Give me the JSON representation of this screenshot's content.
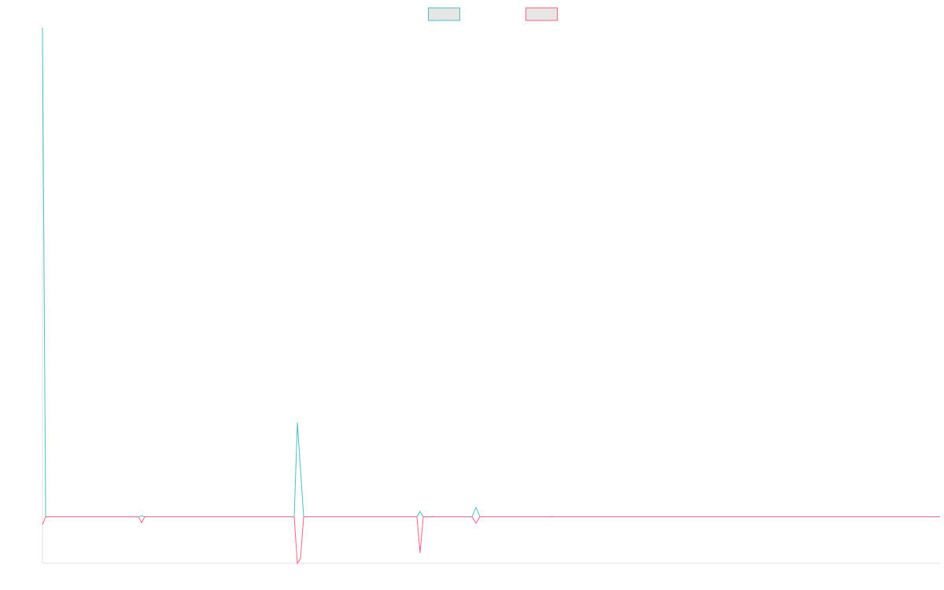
{
  "chart_data": {
    "type": "line",
    "x": [
      0,
      4,
      122,
      126,
      130,
      320,
      324,
      328,
      332,
      476,
      480,
      484,
      494,
      496,
      498,
      546,
      551,
      556,
      646,
      648,
      650,
      1141
    ],
    "xlim": [
      0,
      1141
    ],
    "ylim": [
      -9.5,
      100
    ],
    "series": [
      {
        "color": "#4bc0c0",
        "values": [
          100,
          0,
          0,
          0.2,
          0,
          0,
          19.3,
          9.6,
          0,
          0,
          1.1,
          0,
          0,
          0.1,
          0,
          0,
          1.9,
          0,
          0,
          0.1,
          0,
          0
        ]
      },
      {
        "color": "#ff6384",
        "values": [
          -1.6,
          0,
          0,
          -1.2,
          0,
          0,
          -9.5,
          -8.5,
          0,
          0,
          -7.4,
          0,
          0,
          0,
          0,
          0,
          -1.3,
          0,
          0,
          0,
          0,
          0
        ]
      }
    ],
    "legend": "top"
  }
}
